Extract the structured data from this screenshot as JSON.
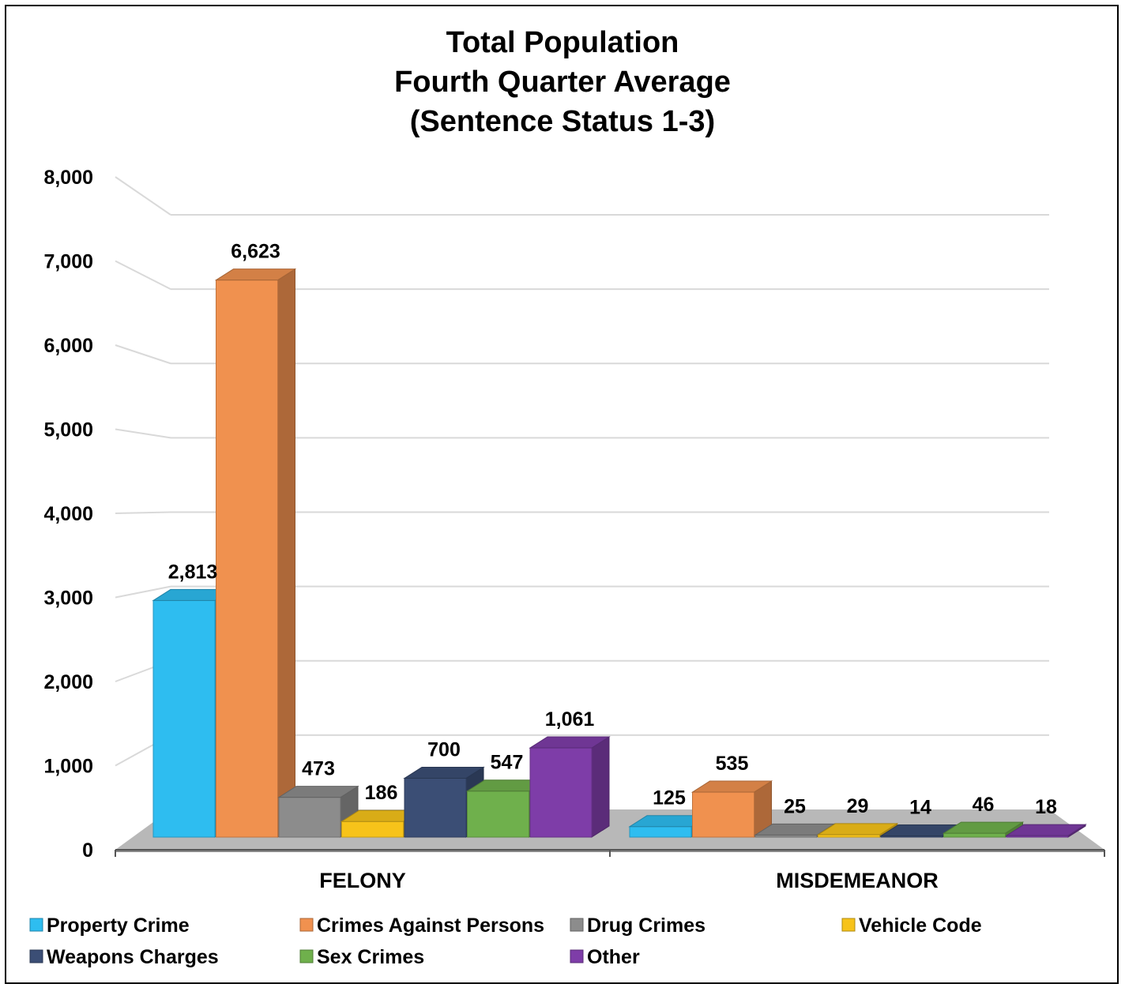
{
  "chart_data": {
    "type": "bar",
    "title": [
      "Total Population",
      "Fourth Quarter Average",
      "(Sentence Status 1-3)"
    ],
    "categories": [
      "FELONY",
      "MISDEMEANOR"
    ],
    "ylim": [
      0,
      8000
    ],
    "yticks": [
      "0",
      "1,000",
      "2,000",
      "3,000",
      "4,000",
      "5,000",
      "6,000",
      "7,000",
      "8,000"
    ],
    "grid": true,
    "style": "3d-clustered-column",
    "legend_position": "bottom",
    "series": [
      {
        "name": "Property Crime",
        "color": "#2EBDF0",
        "values": [
          2813,
          125
        ],
        "labels": [
          "2,813",
          "125"
        ]
      },
      {
        "name": "Crimes Against Persons",
        "color": "#F0914F",
        "values": [
          6623,
          535
        ],
        "labels": [
          "6,623",
          "535"
        ]
      },
      {
        "name": "Drug Crimes",
        "color": "#8C8C8C",
        "values": [
          473,
          25
        ],
        "labels": [
          "473",
          "25"
        ]
      },
      {
        "name": "Vehicle Code",
        "color": "#F7C31A",
        "values": [
          186,
          29
        ],
        "labels": [
          "186",
          "29"
        ]
      },
      {
        "name": "Weapons Charges",
        "color": "#3B4E75",
        "values": [
          700,
          14
        ],
        "labels": [
          "700",
          "14"
        ]
      },
      {
        "name": "Sex Crimes",
        "color": "#6FB04C",
        "values": [
          547,
          46
        ],
        "labels": [
          "547",
          "46"
        ]
      },
      {
        "name": "Other",
        "color": "#7E3DA8",
        "values": [
          1061,
          18
        ],
        "labels": [
          "1,061",
          "18"
        ]
      }
    ]
  }
}
